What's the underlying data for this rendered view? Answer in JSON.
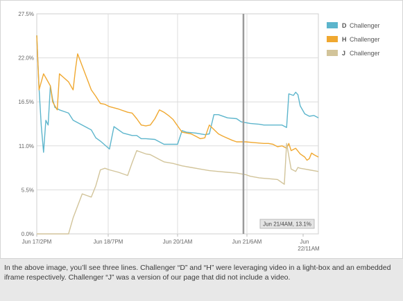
{
  "chart_data": {
    "type": "line",
    "x_ticks": [
      "Jun 17/2PM",
      "Jun 18/7PM",
      "Jun 20/1AM",
      "Jun 21/6AM",
      "Jun 22/11AM"
    ],
    "y_ticks": [
      "27.5%",
      "22.0%",
      "16.5%",
      "11.0%",
      "5.5%",
      "0.0%"
    ],
    "ylim": [
      0,
      27.5
    ],
    "grid": true,
    "legend_position": "top-right",
    "series": [
      {
        "key": "D",
        "name": "Challenger",
        "color": "#5cb5cc",
        "points": [
          [
            0,
            24.8
          ],
          [
            0.5,
            18.2
          ],
          [
            1.0,
            13.5
          ],
          [
            1.5,
            10.2
          ],
          [
            2.0,
            14.2
          ],
          [
            2.5,
            13.6
          ],
          [
            3.0,
            18.5
          ],
          [
            3.5,
            16.8
          ],
          [
            4.0,
            15.8
          ],
          [
            5.0,
            15.5
          ],
          [
            6.0,
            15.3
          ],
          [
            7.0,
            15.1
          ],
          [
            8.0,
            14.2
          ],
          [
            10,
            13.6
          ],
          [
            12,
            13.0
          ],
          [
            13,
            12.0
          ],
          [
            14,
            11.6
          ],
          [
            16,
            10.6
          ],
          [
            17,
            13.4
          ],
          [
            19,
            12.6
          ],
          [
            21,
            12.3
          ],
          [
            22,
            12.3
          ],
          [
            23,
            11.9
          ],
          [
            24,
            11.9
          ],
          [
            26,
            11.8
          ],
          [
            28,
            11.2
          ],
          [
            31,
            11.2
          ],
          [
            32,
            12.9
          ],
          [
            33,
            12.7
          ],
          [
            35,
            12.6
          ],
          [
            37,
            12.4
          ],
          [
            38,
            12.5
          ],
          [
            39,
            14.9
          ],
          [
            40,
            14.9
          ],
          [
            42,
            14.5
          ],
          [
            44,
            14.4
          ],
          [
            45,
            14.0
          ],
          [
            47,
            13.8
          ],
          [
            49,
            13.7
          ],
          [
            50,
            13.6
          ],
          [
            52,
            13.6
          ],
          [
            53,
            13.6
          ],
          [
            54,
            13.6
          ],
          [
            55,
            13.3
          ],
          [
            55.5,
            17.5
          ],
          [
            56.5,
            17.3
          ],
          [
            57,
            17.7
          ],
          [
            57.5,
            17.4
          ],
          [
            58,
            16.0
          ],
          [
            59,
            15.0
          ],
          [
            60,
            14.7
          ],
          [
            61,
            14.8
          ],
          [
            62,
            14.5
          ]
        ]
      },
      {
        "key": "H",
        "name": "Challenger",
        "color": "#f0a830",
        "points": [
          [
            0,
            24.8
          ],
          [
            0.5,
            18.0
          ],
          [
            1.0,
            19.0
          ],
          [
            1.5,
            20.0
          ],
          [
            2.0,
            19.5
          ],
          [
            3.0,
            18.5
          ],
          [
            3.5,
            16.5
          ],
          [
            4.5,
            15.5
          ],
          [
            5.0,
            20.0
          ],
          [
            6.0,
            19.5
          ],
          [
            7.0,
            19.0
          ],
          [
            8.0,
            18.0
          ],
          [
            8.5,
            20.5
          ],
          [
            9.0,
            22.5
          ],
          [
            10,
            21.0
          ],
          [
            11,
            19.5
          ],
          [
            12,
            18.0
          ],
          [
            13,
            17.2
          ],
          [
            14,
            16.3
          ],
          [
            15,
            16.2
          ],
          [
            16,
            15.9
          ],
          [
            18,
            15.6
          ],
          [
            20,
            15.2
          ],
          [
            21,
            15.1
          ],
          [
            22,
            14.4
          ],
          [
            23,
            13.6
          ],
          [
            24,
            13.5
          ],
          [
            25,
            13.6
          ],
          [
            26,
            14.4
          ],
          [
            27,
            15.5
          ],
          [
            28,
            15.2
          ],
          [
            29,
            14.8
          ],
          [
            30,
            14.3
          ],
          [
            31,
            13.5
          ],
          [
            32,
            12.7
          ],
          [
            33,
            12.6
          ],
          [
            34,
            12.5
          ],
          [
            35,
            12.2
          ],
          [
            36,
            11.9
          ],
          [
            37,
            12.0
          ],
          [
            38,
            13.6
          ],
          [
            40,
            12.5
          ],
          [
            41,
            12.2
          ],
          [
            43,
            11.7
          ],
          [
            44,
            11.5
          ],
          [
            46,
            11.5
          ],
          [
            48,
            11.4
          ],
          [
            50,
            11.3
          ],
          [
            51,
            11.3
          ],
          [
            52,
            11.2
          ],
          [
            53,
            10.9
          ],
          [
            54,
            11.0
          ],
          [
            55,
            10.7
          ],
          [
            55.5,
            11.3
          ],
          [
            56,
            10.4
          ],
          [
            57,
            10.7
          ],
          [
            58,
            10.0
          ],
          [
            59,
            9.6
          ],
          [
            59.5,
            9.2
          ],
          [
            60,
            9.4
          ],
          [
            60.5,
            10.1
          ],
          [
            61,
            9.9
          ],
          [
            62,
            9.6
          ]
        ]
      },
      {
        "key": "J",
        "name": "Challenger",
        "color": "#d2c49a",
        "points": [
          [
            0,
            0
          ],
          [
            3,
            0
          ],
          [
            7,
            0
          ],
          [
            8,
            2.0
          ],
          [
            10,
            5.0
          ],
          [
            11,
            4.8
          ],
          [
            12,
            4.6
          ],
          [
            13,
            6.0
          ],
          [
            14,
            8.0
          ],
          [
            15,
            8.2
          ],
          [
            16,
            8.0
          ],
          [
            18,
            7.7
          ],
          [
            20,
            7.3
          ],
          [
            21,
            8.9
          ],
          [
            22,
            10.4
          ],
          [
            24,
            10.0
          ],
          [
            25,
            9.9
          ],
          [
            26,
            9.6
          ],
          [
            27,
            9.3
          ],
          [
            28,
            9.0
          ],
          [
            30,
            8.8
          ],
          [
            32,
            8.5
          ],
          [
            34,
            8.3
          ],
          [
            36,
            8.1
          ],
          [
            38,
            7.9
          ],
          [
            40,
            7.8
          ],
          [
            42,
            7.7
          ],
          [
            44,
            7.6
          ],
          [
            46,
            7.4
          ],
          [
            47,
            7.2
          ],
          [
            49,
            7.0
          ],
          [
            51,
            6.9
          ],
          [
            53,
            6.8
          ],
          [
            54,
            6.4
          ],
          [
            54.5,
            6.2
          ],
          [
            55,
            11.3
          ],
          [
            56,
            8.1
          ],
          [
            57,
            7.8
          ],
          [
            57.5,
            8.3
          ],
          [
            58,
            8.2
          ],
          [
            59,
            8.1
          ],
          [
            60,
            8.0
          ],
          [
            62,
            7.8
          ]
        ]
      }
    ],
    "tooltip": {
      "text": "Jun 21/4AM, 13.1%",
      "x": 45.5
    }
  },
  "caption": {
    "text": "In the above image, you’ll see three lines. Challenger “D” and “H” were leveraging video in a light-box and an embedded iframe respectively. Challenger “J” was a version of our page that did not include a video."
  }
}
